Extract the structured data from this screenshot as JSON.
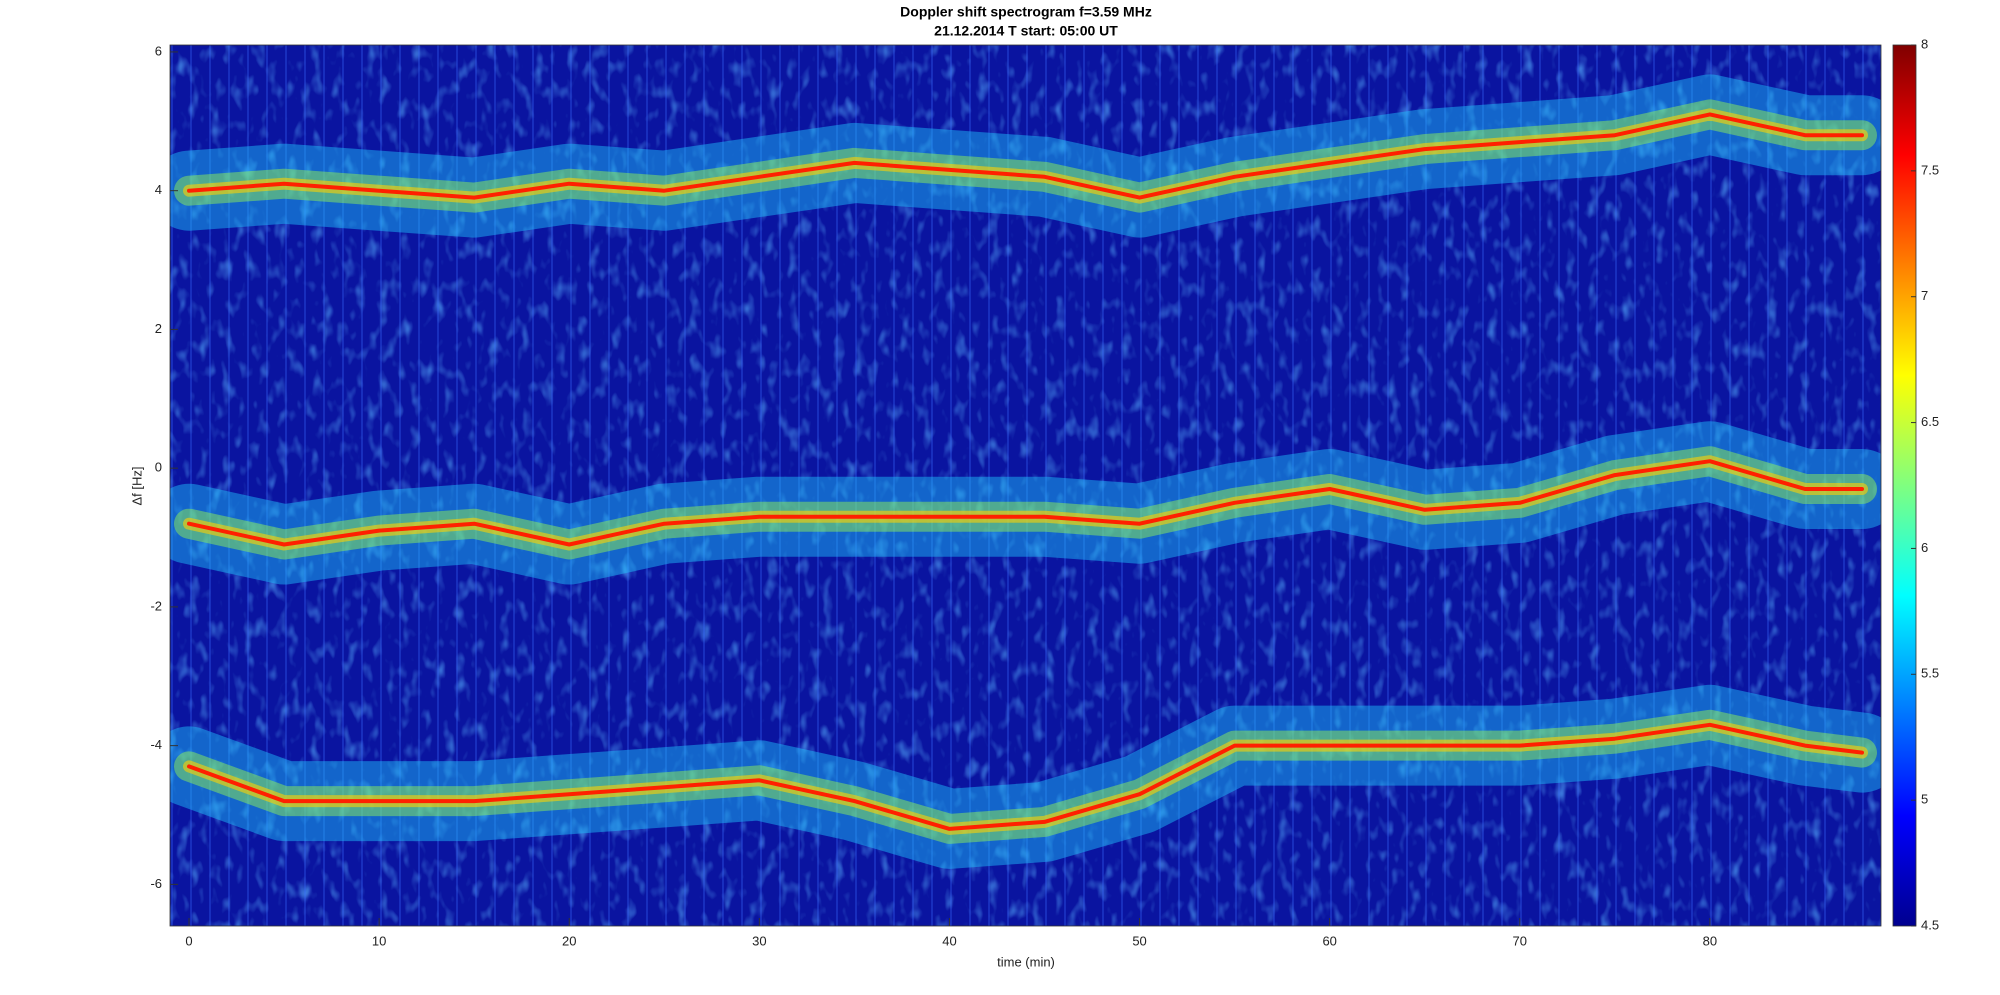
{
  "chart_data": {
    "type": "spectrogram",
    "title": "Doppler shift spectrogram f=3.59 MHz",
    "subtitle": "21.12.2014   T start: 05:00 UT",
    "x_label": "time (min)",
    "y_label": "Δf [Hz]",
    "x": [
      0,
      5,
      10,
      15,
      20,
      25,
      30,
      35,
      40,
      45,
      50,
      55,
      60,
      65,
      70,
      75,
      80,
      85,
      88
    ],
    "series": [
      {
        "color": "#ff2000",
        "values": [
          4.0,
          4.1,
          4.0,
          3.9,
          4.1,
          4.0,
          4.2,
          4.4,
          4.3,
          4.2,
          3.9,
          4.2,
          4.4,
          4.6,
          4.7,
          4.8,
          5.1,
          4.8,
          4.8
        ]
      },
      {
        "color": "#ff2000",
        "values": [
          -0.8,
          -1.1,
          -0.9,
          -0.8,
          -1.1,
          -0.8,
          -0.7,
          -0.7,
          -0.7,
          -0.7,
          -0.8,
          -0.5,
          -0.3,
          -0.6,
          -0.5,
          -0.1,
          0.1,
          -0.3,
          -0.3
        ]
      },
      {
        "color": "#ff2000",
        "values": [
          -4.3,
          -4.8,
          -4.8,
          -4.8,
          -4.7,
          -4.6,
          -4.5,
          -4.8,
          -5.2,
          -5.1,
          -4.7,
          -4.0,
          -4.0,
          -4.0,
          -4.0,
          -3.9,
          -3.7,
          -4.0,
          -4.1
        ]
      }
    ],
    "background_color": "#0a14a0",
    "xlim": [
      -1,
      89
    ],
    "xticks": [
      0,
      10,
      20,
      30,
      40,
      50,
      60,
      70,
      80
    ],
    "ylim": [
      -6.6,
      6.1
    ],
    "yticks": [
      -6,
      -4,
      -2,
      0,
      2,
      4,
      6
    ],
    "clim": [
      4.5,
      8
    ],
    "cticks": [
      4.5,
      5,
      5.5,
      6,
      6.5,
      7,
      7.5,
      8
    ]
  }
}
